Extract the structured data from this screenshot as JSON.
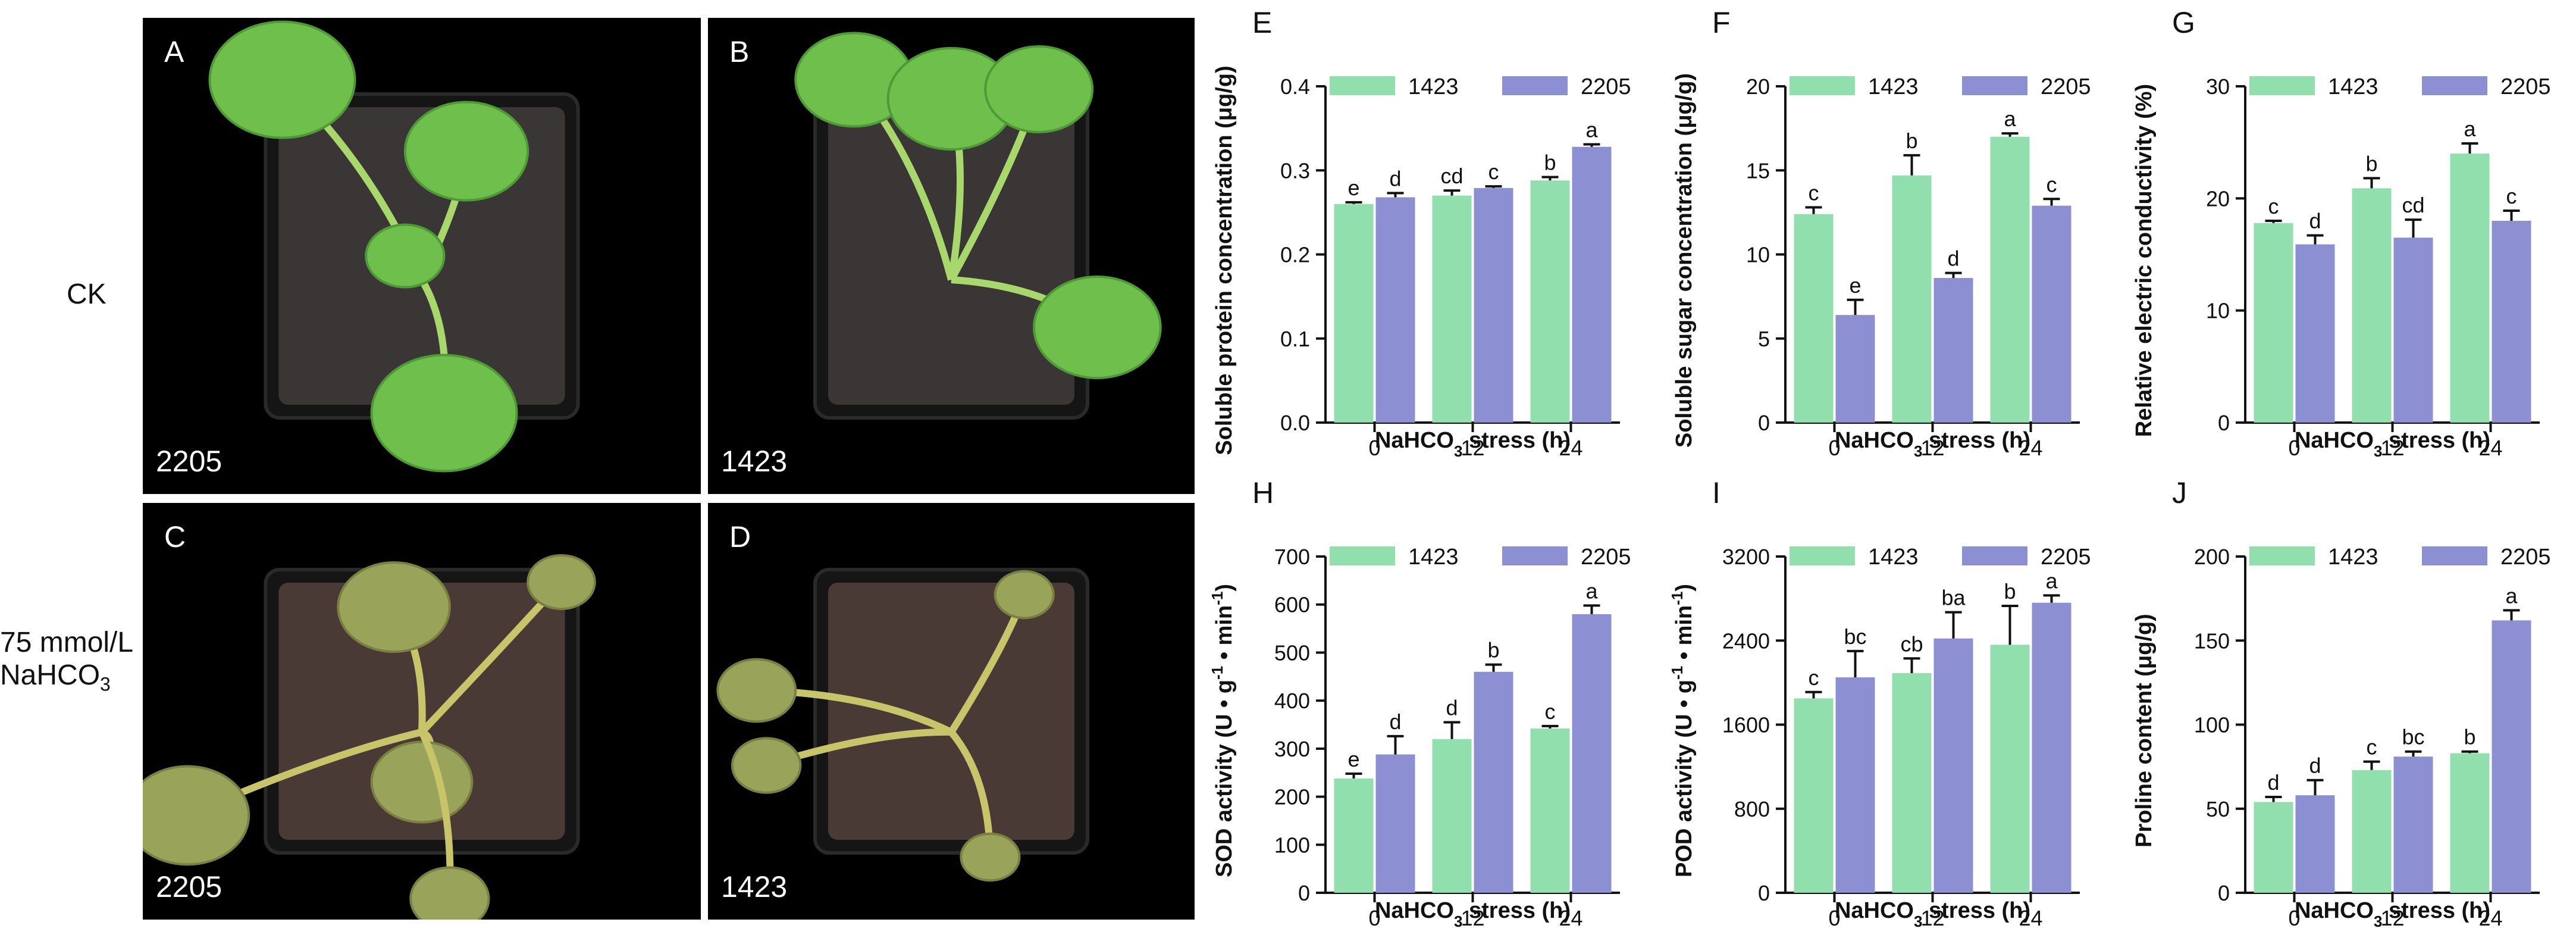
{
  "row_labels": {
    "ck": "CK",
    "stress_line1": "75 mmol/L",
    "stress_line2_main": "NaHCO",
    "stress_line2_sub": "3"
  },
  "photos": [
    {
      "letter": "A",
      "cultivar": "2205",
      "treatment": "CK"
    },
    {
      "letter": "B",
      "cultivar": "1423",
      "treatment": "CK"
    },
    {
      "letter": "C",
      "cultivar": "2205",
      "treatment": "NaHCO3"
    },
    {
      "letter": "D",
      "cultivar": "1423",
      "treatment": "NaHCO3"
    }
  ],
  "colors": {
    "series_1423": "#90dfad",
    "series_2205": "#8d8fd3",
    "photo_bg": "#000000",
    "leaf_green": "#6fbf4d",
    "wilted_leaf": "#9aa35a",
    "soil": "#3b3636"
  },
  "x_axis": {
    "label_main": "NaHCO",
    "label_sub": "3",
    "label_suffix": " stress (h)"
  },
  "chart_data": [
    {
      "letter": "E",
      "type": "bar",
      "ylabel": "Soluble protein concentration (μg/g)",
      "categories": [
        "0",
        "12",
        "24"
      ],
      "yticks": [
        "0.0",
        "0.1",
        "0.2",
        "0.3",
        "0.4"
      ],
      "ylim": [
        0,
        0.4
      ],
      "legend_position": "top-left",
      "series": [
        {
          "name": "1423",
          "values": [
            0.26,
            0.27,
            0.288
          ],
          "errors": [
            0.002,
            0.006,
            0.004
          ],
          "letters": [
            "e",
            "cd",
            "b"
          ]
        },
        {
          "name": "2205",
          "values": [
            0.268,
            0.279,
            0.328
          ],
          "errors": [
            0.005,
            0.002,
            0.003
          ],
          "letters": [
            "d",
            "c",
            "a"
          ]
        }
      ]
    },
    {
      "letter": "F",
      "type": "bar",
      "ylabel": "Soluble sugar concentration (μg/g)",
      "categories": [
        "0",
        "12",
        "24"
      ],
      "yticks": [
        "0",
        "5",
        "10",
        "15",
        "20"
      ],
      "ylim": [
        0,
        20
      ],
      "legend_position": "top-left",
      "series": [
        {
          "name": "1423",
          "values": [
            12.4,
            14.7,
            17.0
          ],
          "errors": [
            0.4,
            1.2,
            0.2
          ],
          "letters": [
            "c",
            "b",
            "a"
          ]
        },
        {
          "name": "2205",
          "values": [
            6.4,
            8.6,
            12.9
          ],
          "errors": [
            0.9,
            0.3,
            0.4
          ],
          "letters": [
            "e",
            "d",
            "c"
          ]
        }
      ]
    },
    {
      "letter": "G",
      "type": "bar",
      "ylabel": "Relative electric conductivity  (%)",
      "categories": [
        "0",
        "12",
        "24"
      ],
      "yticks": [
        "0",
        "10",
        "20",
        "30"
      ],
      "ylim": [
        0,
        30
      ],
      "legend_position": "top-left",
      "series": [
        {
          "name": "1423",
          "values": [
            17.8,
            20.9,
            24.0
          ],
          "errors": [
            0.2,
            0.9,
            0.9
          ],
          "letters": [
            "c",
            "b",
            "a"
          ]
        },
        {
          "name": "2205",
          "values": [
            15.9,
            16.5,
            18.0
          ],
          "errors": [
            0.8,
            1.6,
            0.9
          ],
          "letters": [
            "d",
            "cd",
            "c"
          ]
        }
      ]
    },
    {
      "letter": "H",
      "type": "bar",
      "ylabel_main": "SOD activity (U • g",
      "ylabel_sup1": "-1",
      "ylabel_mid": " • min",
      "ylabel_sup2": "-1",
      "ylabel_end": ")",
      "categories": [
        "0",
        "12",
        "24"
      ],
      "yticks": [
        "0",
        "100",
        "200",
        "300",
        "400",
        "500",
        "600",
        "700"
      ],
      "ylim": [
        0,
        700
      ],
      "legend_position": "top-left",
      "series": [
        {
          "name": "1423",
          "values": [
            238,
            320,
            342
          ],
          "errors": [
            10,
            35,
            5
          ],
          "letters": [
            "e",
            "d",
            "c"
          ]
        },
        {
          "name": "2205",
          "values": [
            288,
            460,
            580
          ],
          "errors": [
            38,
            15,
            18
          ],
          "letters": [
            "d",
            "b",
            "a"
          ]
        }
      ]
    },
    {
      "letter": "I",
      "type": "bar",
      "ylabel_main": "POD activity (U • g",
      "ylabel_sup1": "-1",
      "ylabel_mid": " • min",
      "ylabel_sup2": "-1",
      "ylabel_end": ")",
      "categories": [
        "0",
        "12",
        "24"
      ],
      "yticks": [
        "0",
        "800",
        "1600",
        "2400",
        "3200"
      ],
      "ylim": [
        0,
        3200
      ],
      "legend_position": "top-left",
      "series": [
        {
          "name": "1423",
          "values": [
            1850,
            2090,
            2360
          ],
          "errors": [
            60,
            140,
            370
          ],
          "letters": [
            "c",
            "cb",
            "b"
          ]
        },
        {
          "name": "2205",
          "values": [
            2050,
            2420,
            2760
          ],
          "errors": [
            250,
            250,
            70
          ],
          "letters": [
            "bc",
            "ba",
            "a"
          ]
        }
      ]
    },
    {
      "letter": "J",
      "type": "bar",
      "ylabel": "Proline content (μg/g)",
      "categories": [
        "0",
        "12",
        "24"
      ],
      "yticks": [
        "0",
        "50",
        "100",
        "150",
        "200"
      ],
      "ylim": [
        0,
        200
      ],
      "legend_position": "top-left",
      "series": [
        {
          "name": "1423",
          "values": [
            54,
            73,
            83
          ],
          "errors": [
            3,
            5,
            1
          ],
          "letters": [
            "d",
            "c",
            "b"
          ]
        },
        {
          "name": "2205",
          "values": [
            58,
            81,
            162
          ],
          "errors": [
            9,
            3,
            6
          ],
          "letters": [
            "d",
            "bc",
            "a"
          ]
        }
      ]
    }
  ]
}
